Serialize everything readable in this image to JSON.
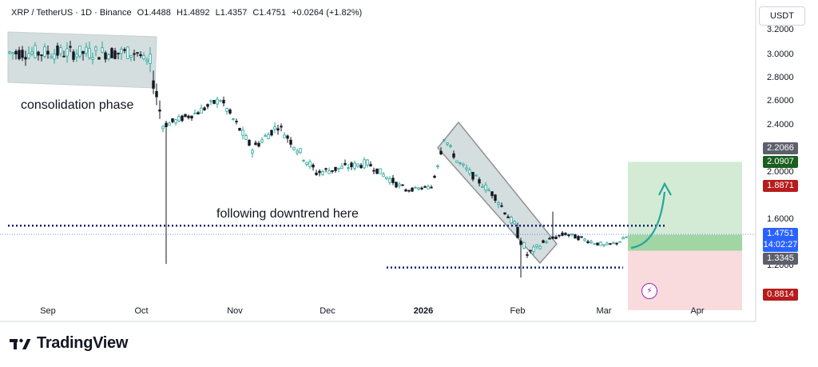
{
  "header": {
    "symbol": "XRP / TetherUS · 1D · Binance",
    "open": "O1.4488",
    "high": "H1.4892",
    "low": "L1.4357",
    "close": "C1.4751",
    "change": "+0.0264 (+1.82%)"
  },
  "currency_button": "USDT",
  "annotations": {
    "consolidation": "consolidation phase",
    "downtrend": "following downtrend here"
  },
  "price_tags": {
    "tp2": "2.2066",
    "tp1": "2.0907",
    "tp0": "1.8871",
    "current": "1.4751",
    "countdown": "14:02:27",
    "entry": "1.3345",
    "stop": "0.8814"
  },
  "footer": {
    "brand": "TradingView"
  },
  "icons": {
    "logo": "tradingview-logo-icon",
    "alert": "lightning-bolt-icon"
  },
  "colors": {
    "up": "#26a69a",
    "down": "#131722",
    "tp_zone": "#c8e6c9",
    "sl_zone": "#f8d7da",
    "tag_green": "#1b5e20",
    "tag_red": "#b71c1c",
    "tag_blue": "#2962ff",
    "tag_gray": "#5d606b",
    "arrow": "#26a69a",
    "dotted": "#0d1b6e",
    "rect_fill": "#b2c4c4"
  },
  "chart_data": {
    "type": "candlestick",
    "title": "XRP / TetherUS · 1D · Binance",
    "ylim": [
      0.85,
      3.3
    ],
    "y_ticks": [
      "3.2000",
      "3.0000",
      "2.8000",
      "2.6000",
      "2.4000",
      "2.2000",
      "2.0000",
      "1.6000",
      "1.2000"
    ],
    "x_ticks": [
      "Sep",
      "Oct",
      "Nov",
      "Dec",
      "2026",
      "Feb",
      "Mar",
      "Apr"
    ],
    "grid": false,
    "segments": [
      {
        "from": 0,
        "to": 40,
        "start": 3.02,
        "end": 3.02,
        "range": 0.12
      },
      {
        "from": 40,
        "to": 44,
        "start": 3.02,
        "end": 2.92,
        "range": 0.06
      },
      {
        "from": 44,
        "to": 48,
        "start": 2.92,
        "end": 2.4,
        "range": 0.18
      },
      {
        "from": 48,
        "to": 58,
        "start": 2.4,
        "end": 2.5,
        "range": 0.06
      },
      {
        "from": 58,
        "to": 66,
        "start": 2.5,
        "end": 2.62,
        "range": 0.07
      },
      {
        "from": 66,
        "to": 76,
        "start": 2.62,
        "end": 2.2,
        "range": 0.08
      },
      {
        "from": 76,
        "to": 84,
        "start": 2.2,
        "end": 2.4,
        "range": 0.08
      },
      {
        "from": 84,
        "to": 96,
        "start": 2.4,
        "end": 2.0,
        "range": 0.08
      },
      {
        "from": 96,
        "to": 112,
        "start": 2.0,
        "end": 2.08,
        "range": 0.07
      },
      {
        "from": 112,
        "to": 124,
        "start": 2.08,
        "end": 1.85,
        "range": 0.06
      },
      {
        "from": 124,
        "to": 132,
        "start": 1.85,
        "end": 1.88,
        "range": 0.03
      },
      {
        "from": 132,
        "to": 136,
        "start": 1.88,
        "end": 2.3,
        "range": 0.1
      },
      {
        "from": 136,
        "to": 140,
        "start": 2.3,
        "end": 2.1,
        "range": 0.06
      },
      {
        "from": 140,
        "to": 152,
        "start": 2.1,
        "end": 1.8,
        "range": 0.06
      },
      {
        "from": 152,
        "to": 158,
        "start": 1.8,
        "end": 1.55,
        "range": 0.07
      },
      {
        "from": 158,
        "to": 162,
        "start": 1.55,
        "end": 1.3,
        "range": 0.1
      },
      {
        "from": 162,
        "to": 168,
        "start": 1.3,
        "end": 1.42,
        "range": 0.06
      },
      {
        "from": 168,
        "to": 174,
        "start": 1.42,
        "end": 1.48,
        "range": 0.04
      },
      {
        "from": 174,
        "to": 186,
        "start": 1.48,
        "end": 1.38,
        "range": 0.04
      },
      {
        "from": 186,
        "to": 190,
        "start": 1.38,
        "end": 1.4,
        "range": 0.03
      },
      {
        "from": 190,
        "to": 194,
        "start": 1.4,
        "end": 1.47,
        "range": 0.03
      }
    ],
    "spikes": [
      {
        "index": 49,
        "low": 1.22
      },
      {
        "index": 160,
        "low": 1.11
      },
      {
        "index": 170,
        "high": 1.67
      }
    ],
    "levels": {
      "resistance": 1.55,
      "support": 1.19,
      "target": 2.0907,
      "entry": 1.3345,
      "stop": 0.8814
    }
  }
}
